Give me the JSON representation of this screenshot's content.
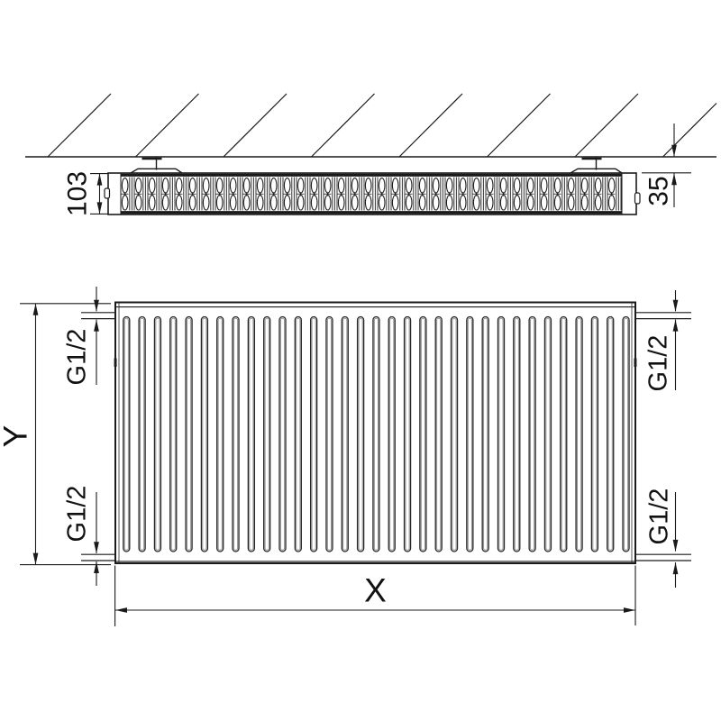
{
  "drawing": {
    "top_view": {
      "depth_label": "103",
      "wall_distance_label": "35"
    },
    "front_view": {
      "height_label": "Y",
      "width_label": "X",
      "connection_labels": {
        "top_left": "G1/2",
        "bottom_left": "G1/2",
        "top_right": "G1/2",
        "bottom_right": "G1/2"
      }
    },
    "counts": {
      "front_fins": 33,
      "wall_hatch_lines": 8
    },
    "colors": {
      "line": "#1a1a1a",
      "thin_line": "#333333",
      "fin_inner": "#8f8f8f",
      "background": "#ffffff"
    }
  }
}
